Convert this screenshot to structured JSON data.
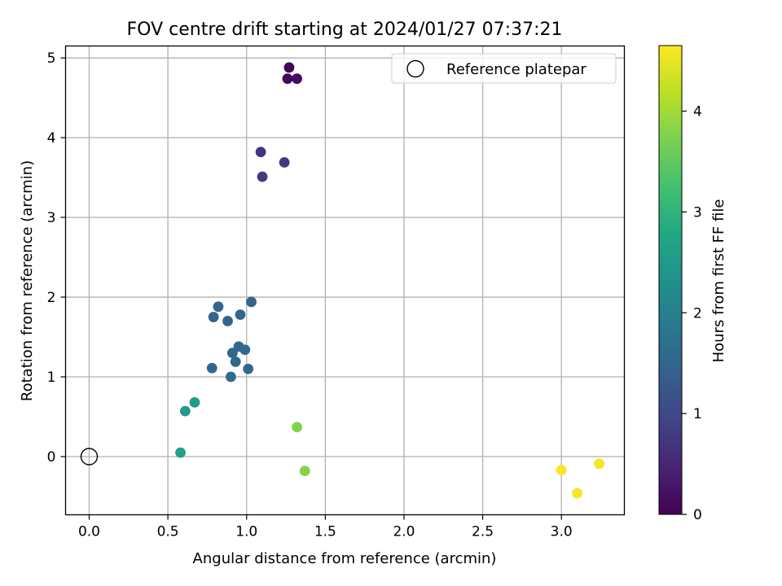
{
  "chart_data": {
    "type": "scatter",
    "title": "FOV centre drift starting at 2024/01/27 07:37:21",
    "xlabel": "Angular distance from reference (arcmin)",
    "ylabel": "Rotation from reference (arcmin)",
    "xlim": [
      -0.15,
      3.4
    ],
    "ylim": [
      -0.73,
      5.15
    ],
    "xticks": [
      0.0,
      0.5,
      1.0,
      1.5,
      2.0,
      2.5,
      3.0
    ],
    "xtick_labels": [
      "0.0",
      "0.5",
      "1.0",
      "1.5",
      "2.0",
      "2.5",
      "3.0"
    ],
    "yticks": [
      0,
      1,
      2,
      3,
      4,
      5
    ],
    "ytick_labels": [
      "0",
      "1",
      "2",
      "3",
      "4",
      "5"
    ],
    "grid": true,
    "legend": {
      "location": "upper right",
      "entries": [
        "Reference platepar"
      ]
    },
    "reference_point": {
      "x": 0.0,
      "y": 0.0
    },
    "colorbar": {
      "label": "Hours from first FF file",
      "colormap": "viridis",
      "range": [
        0,
        4.65
      ],
      "ticks": [
        0,
        1,
        2,
        3,
        4
      ],
      "tick_labels": [
        "0",
        "1",
        "2",
        "3",
        "4"
      ]
    },
    "points": [
      {
        "x": 1.27,
        "y": 4.88,
        "c": 0.05
      },
      {
        "x": 1.26,
        "y": 4.74,
        "c": 0.1
      },
      {
        "x": 1.32,
        "y": 4.74,
        "c": 0.15
      },
      {
        "x": 1.09,
        "y": 3.82,
        "c": 0.7
      },
      {
        "x": 1.24,
        "y": 3.69,
        "c": 0.72
      },
      {
        "x": 1.1,
        "y": 3.51,
        "c": 0.75
      },
      {
        "x": 1.03,
        "y": 1.94,
        "c": 1.5
      },
      {
        "x": 0.82,
        "y": 1.88,
        "c": 1.5
      },
      {
        "x": 0.79,
        "y": 1.75,
        "c": 1.5
      },
      {
        "x": 0.96,
        "y": 1.78,
        "c": 1.5
      },
      {
        "x": 0.88,
        "y": 1.7,
        "c": 1.5
      },
      {
        "x": 0.95,
        "y": 1.38,
        "c": 1.55
      },
      {
        "x": 0.99,
        "y": 1.34,
        "c": 1.55
      },
      {
        "x": 0.91,
        "y": 1.3,
        "c": 1.55
      },
      {
        "x": 0.93,
        "y": 1.19,
        "c": 1.55
      },
      {
        "x": 0.78,
        "y": 1.11,
        "c": 1.55
      },
      {
        "x": 1.01,
        "y": 1.1,
        "c": 1.55
      },
      {
        "x": 0.9,
        "y": 1.0,
        "c": 1.6
      },
      {
        "x": 0.67,
        "y": 0.68,
        "c": 2.55
      },
      {
        "x": 0.61,
        "y": 0.57,
        "c": 2.55
      },
      {
        "x": 0.58,
        "y": 0.05,
        "c": 2.6
      },
      {
        "x": 1.32,
        "y": 0.37,
        "c": 3.75
      },
      {
        "x": 1.37,
        "y": -0.18,
        "c": 3.8
      },
      {
        "x": 3.0,
        "y": -0.17,
        "c": 4.6
      },
      {
        "x": 3.24,
        "y": -0.09,
        "c": 4.6
      },
      {
        "x": 3.1,
        "y": -0.46,
        "c": 4.6
      }
    ]
  }
}
